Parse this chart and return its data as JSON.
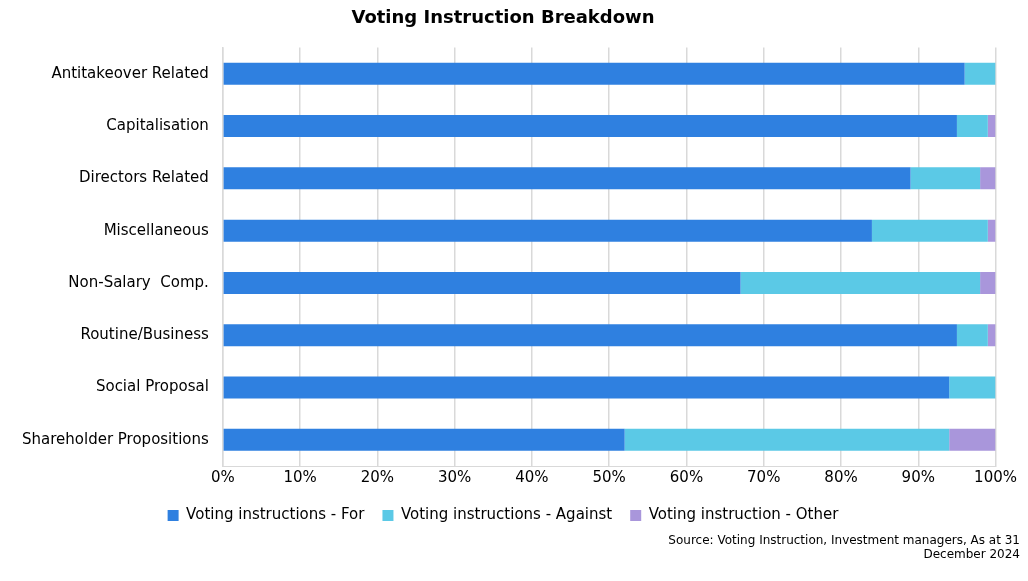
{
  "chart_data": {
    "type": "bar",
    "title": "Voting Instruction Breakdown",
    "orientation": "horizontal",
    "stacked": true,
    "categories": [
      "Antitakeover Related",
      "Capitalisation",
      "Directors Related",
      "Miscellaneous",
      "Non-Salary  Comp.",
      "Routine/Business",
      "Social Proposal",
      "Shareholder Propositions"
    ],
    "series": [
      {
        "name": "Voting instructions - For",
        "color": "#2f80e0",
        "values": [
          96,
          95,
          89,
          84,
          67,
          95,
          94,
          52
        ]
      },
      {
        "name": "Voting instructions - Against",
        "color": "#5bc9e6",
        "values": [
          4,
          4,
          9,
          15,
          31,
          4,
          6,
          42
        ]
      },
      {
        "name": "Voting instruction - Other",
        "color": "#a996db",
        "values": [
          0,
          1,
          2,
          1,
          2,
          1,
          0,
          6
        ]
      }
    ],
    "xlim": [
      0,
      100
    ],
    "xticks": [
      {
        "value": 0,
        "label": "0%"
      },
      {
        "value": 10,
        "label": "10%"
      },
      {
        "value": 20,
        "label": "20%"
      },
      {
        "value": 30,
        "label": "30%"
      },
      {
        "value": 40,
        "label": "40%"
      },
      {
        "value": 50,
        "label": "50%"
      },
      {
        "value": 60,
        "label": "60%"
      },
      {
        "value": 70,
        "label": "70%"
      },
      {
        "value": 80,
        "label": "80%"
      },
      {
        "value": 90,
        "label": "90%"
      },
      {
        "value": 100,
        "label": "100%"
      }
    ],
    "grid": "x",
    "legend": "bottom",
    "annotations": [
      "Source: Voting Instruction, Investment managers, As at 31 December 2024"
    ]
  }
}
